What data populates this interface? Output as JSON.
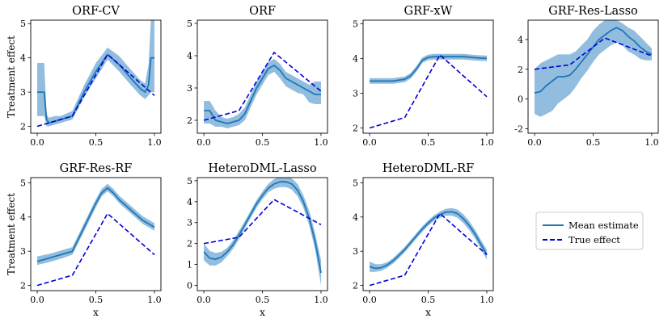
{
  "figure": {
    "legend": {
      "mean_label": "Mean estimate",
      "true_label": "True effect",
      "placement": "right-of-bottom-row"
    },
    "colors": {
      "mean": "#1f77b4",
      "band": "#7fb2d9",
      "true": "#0000dd"
    },
    "true_effect": {
      "x": [
        0,
        0.3,
        0.6,
        1.0
      ],
      "y": [
        2.0,
        2.3,
        4.1,
        2.9
      ]
    }
  },
  "chart_data": [
    {
      "type": "line",
      "title": "ORF-CV",
      "xlabel": "",
      "ylabel": "Treatment effect",
      "xlim": [
        0,
        1
      ],
      "ylim": [
        1.8,
        5.1
      ],
      "xticks": [
        "0.0",
        "0.5",
        "1.0"
      ],
      "xtick_values": [
        0,
        0.5,
        1
      ],
      "yticks": [
        "2",
        "3",
        "4",
        "5"
      ],
      "ytick_values": [
        2,
        3,
        4,
        5
      ],
      "series": [
        {
          "name": "Mean estimate",
          "x": [
            0,
            0.02,
            0.06,
            0.08,
            0.1,
            0.15,
            0.2,
            0.3,
            0.4,
            0.5,
            0.6,
            0.7,
            0.8,
            0.88,
            0.92,
            0.95,
            0.97,
            1.0
          ],
          "y": [
            3.0,
            3.0,
            3.0,
            2.2,
            2.1,
            2.15,
            2.2,
            2.3,
            3.0,
            3.6,
            4.1,
            3.8,
            3.4,
            3.1,
            3.0,
            3.2,
            4.0,
            4.0
          ],
          "lower": [
            2.3,
            2.3,
            2.3,
            2.0,
            2.0,
            2.05,
            2.1,
            2.2,
            2.85,
            3.4,
            3.95,
            3.6,
            3.2,
            2.9,
            2.8,
            2.9,
            3.0,
            3.0
          ],
          "upper": [
            3.85,
            3.85,
            3.85,
            2.35,
            2.25,
            2.3,
            2.3,
            2.45,
            3.2,
            3.85,
            4.3,
            4.05,
            3.65,
            3.35,
            3.25,
            3.8,
            5.1,
            5.1
          ]
        },
        {
          "name": "True effect",
          "x": [
            0,
            0.3,
            0.6,
            1.0
          ],
          "y": [
            2.0,
            2.3,
            4.1,
            2.9
          ]
        }
      ]
    },
    {
      "type": "line",
      "title": "ORF",
      "xlabel": "",
      "ylabel": "",
      "xlim": [
        0,
        1
      ],
      "ylim": [
        1.6,
        5.1
      ],
      "xticks": [
        "0.0",
        "0.5",
        "1.0"
      ],
      "xtick_values": [
        0,
        0.5,
        1
      ],
      "yticks": [
        "2",
        "3",
        "4",
        "5"
      ],
      "ytick_values": [
        2,
        3,
        4,
        5
      ],
      "series": [
        {
          "name": "Mean estimate",
          "x": [
            0,
            0.05,
            0.1,
            0.15,
            0.2,
            0.25,
            0.3,
            0.35,
            0.4,
            0.45,
            0.5,
            0.55,
            0.6,
            0.65,
            0.7,
            0.75,
            0.8,
            0.85,
            0.9,
            0.95,
            1.0
          ],
          "y": [
            2.3,
            2.3,
            2.0,
            1.95,
            1.9,
            1.95,
            2.0,
            2.2,
            2.6,
            3.0,
            3.3,
            3.6,
            3.7,
            3.55,
            3.3,
            3.2,
            3.1,
            3.0,
            2.9,
            2.8,
            2.8
          ],
          "lower": [
            1.9,
            1.9,
            1.8,
            1.8,
            1.75,
            1.8,
            1.85,
            2.0,
            2.4,
            2.8,
            3.1,
            3.4,
            3.5,
            3.3,
            3.05,
            2.95,
            2.85,
            2.8,
            2.55,
            2.5,
            2.5
          ],
          "upper": [
            2.6,
            2.6,
            2.3,
            2.1,
            2.05,
            2.1,
            2.2,
            2.4,
            2.8,
            3.2,
            3.5,
            3.8,
            3.9,
            3.75,
            3.5,
            3.4,
            3.3,
            3.2,
            3.1,
            3.2,
            3.2
          ]
        },
        {
          "name": "True effect",
          "x": [
            0,
            0.3,
            0.6,
            1.0
          ],
          "y": [
            2.0,
            2.3,
            4.1,
            2.9
          ]
        }
      ]
    },
    {
      "type": "line",
      "title": "GRF-xW",
      "xlabel": "",
      "ylabel": "",
      "xlim": [
        0,
        1
      ],
      "ylim": [
        1.85,
        5.1
      ],
      "xticks": [
        "0.0",
        "0.5",
        "1.0"
      ],
      "xtick_values": [
        0,
        0.5,
        1
      ],
      "yticks": [
        "2",
        "3",
        "4",
        "5"
      ],
      "ytick_values": [
        2,
        3,
        4,
        5
      ],
      "series": [
        {
          "name": "Mean estimate",
          "x": [
            0,
            0.1,
            0.2,
            0.3,
            0.35,
            0.4,
            0.45,
            0.5,
            0.55,
            0.6,
            0.7,
            0.8,
            0.9,
            1.0
          ],
          "y": [
            3.35,
            3.35,
            3.35,
            3.4,
            3.5,
            3.7,
            3.95,
            4.03,
            4.05,
            4.05,
            4.05,
            4.05,
            4.02,
            4.0
          ],
          "lower": [
            3.27,
            3.27,
            3.27,
            3.32,
            3.42,
            3.62,
            3.87,
            3.95,
            3.97,
            3.97,
            3.97,
            3.97,
            3.94,
            3.92
          ],
          "upper": [
            3.43,
            3.43,
            3.43,
            3.48,
            3.58,
            3.78,
            4.03,
            4.11,
            4.13,
            4.13,
            4.13,
            4.13,
            4.1,
            4.08
          ]
        },
        {
          "name": "True effect",
          "x": [
            0,
            0.3,
            0.6,
            1.0
          ],
          "y": [
            2.0,
            2.3,
            4.1,
            2.9
          ]
        }
      ]
    },
    {
      "type": "line",
      "title": "GRF-Res-Lasso",
      "xlabel": "",
      "ylabel": "",
      "xlim": [
        0,
        1
      ],
      "ylim": [
        -2.3,
        5.3
      ],
      "xticks": [
        "0.0",
        "0.5",
        "1.0"
      ],
      "xtick_values": [
        0,
        0.5,
        1
      ],
      "yticks": [
        "-2",
        "0",
        "2",
        "4"
      ],
      "ytick_values": [
        -2,
        0,
        2,
        4
      ],
      "series": [
        {
          "name": "Mean estimate",
          "x": [
            0,
            0.05,
            0.1,
            0.15,
            0.2,
            0.25,
            0.3,
            0.35,
            0.4,
            0.45,
            0.5,
            0.55,
            0.6,
            0.65,
            0.7,
            0.75,
            0.8,
            0.85,
            0.9,
            0.95,
            1.0
          ],
          "y": [
            0.4,
            0.5,
            0.9,
            1.2,
            1.5,
            1.5,
            1.6,
            2.0,
            2.5,
            3.0,
            3.5,
            4.0,
            4.3,
            4.6,
            4.8,
            4.6,
            4.2,
            3.9,
            3.5,
            3.2,
            3.0
          ],
          "lower": [
            -1.0,
            -1.2,
            -1.0,
            -0.8,
            -0.3,
            0.0,
            0.3,
            0.8,
            1.4,
            1.9,
            2.5,
            3.0,
            3.3,
            3.6,
            3.8,
            3.6,
            3.2,
            3.0,
            2.7,
            2.6,
            2.6
          ],
          "upper": [
            2.0,
            2.4,
            2.6,
            2.8,
            3.0,
            3.0,
            3.0,
            3.2,
            3.6,
            4.0,
            4.6,
            5.0,
            5.3,
            5.3,
            5.3,
            5.1,
            4.8,
            4.6,
            4.2,
            3.8,
            3.4
          ]
        },
        {
          "name": "True effect",
          "x": [
            0,
            0.3,
            0.6,
            1.0
          ],
          "y": [
            2.0,
            2.3,
            4.1,
            2.9
          ]
        }
      ]
    },
    {
      "type": "line",
      "title": "GRF-Res-RF",
      "xlabel": "x",
      "ylabel": "Treatment effect",
      "xlim": [
        0,
        1
      ],
      "ylim": [
        1.85,
        5.15
      ],
      "xticks": [
        "0.0",
        "0.5",
        "1.0"
      ],
      "xtick_values": [
        0,
        0.5,
        1
      ],
      "yticks": [
        "2",
        "3",
        "4",
        "5"
      ],
      "ytick_values": [
        2,
        3,
        4,
        5
      ],
      "series": [
        {
          "name": "Mean estimate",
          "x": [
            0,
            0.1,
            0.2,
            0.3,
            0.4,
            0.5,
            0.55,
            0.6,
            0.65,
            0.7,
            0.8,
            0.9,
            1.0
          ],
          "y": [
            2.7,
            2.8,
            2.9,
            3.0,
            3.7,
            4.4,
            4.7,
            4.85,
            4.7,
            4.5,
            4.2,
            3.9,
            3.7
          ],
          "lower": [
            2.6,
            2.68,
            2.78,
            2.9,
            3.58,
            4.28,
            4.6,
            4.75,
            4.6,
            4.4,
            4.1,
            3.8,
            3.6
          ],
          "upper": [
            2.85,
            2.92,
            3.02,
            3.12,
            3.82,
            4.52,
            4.82,
            4.97,
            4.82,
            4.62,
            4.32,
            4.02,
            3.82
          ]
        },
        {
          "name": "True effect",
          "x": [
            0,
            0.3,
            0.6,
            1.0
          ],
          "y": [
            2.0,
            2.3,
            4.1,
            2.9
          ]
        }
      ]
    },
    {
      "type": "line",
      "title": "HeteroDML-Lasso",
      "xlabel": "x",
      "ylabel": "",
      "xlim": [
        0,
        1
      ],
      "ylim": [
        -0.25,
        5.15
      ],
      "xticks": [
        "0.0",
        "0.5",
        "1.0"
      ],
      "xtick_values": [
        0,
        0.5,
        1
      ],
      "yticks": [
        "0",
        "1",
        "2",
        "3",
        "4",
        "5"
      ],
      "ytick_values": [
        0,
        1,
        2,
        3,
        4,
        5
      ],
      "series": [
        {
          "name": "Mean estimate",
          "x": [
            0,
            0.05,
            0.1,
            0.15,
            0.2,
            0.25,
            0.3,
            0.35,
            0.4,
            0.45,
            0.5,
            0.55,
            0.6,
            0.65,
            0.7,
            0.75,
            0.8,
            0.85,
            0.9,
            0.95,
            1.0
          ],
          "y": [
            1.6,
            1.3,
            1.25,
            1.35,
            1.6,
            1.95,
            2.4,
            2.9,
            3.4,
            3.9,
            4.3,
            4.65,
            4.85,
            4.95,
            4.95,
            4.85,
            4.55,
            4.0,
            3.2,
            2.1,
            0.6
          ],
          "lower": [
            1.2,
            0.95,
            0.95,
            1.1,
            1.4,
            1.75,
            2.2,
            2.72,
            3.22,
            3.72,
            4.12,
            4.45,
            4.62,
            4.7,
            4.7,
            4.58,
            4.26,
            3.7,
            2.85,
            1.7,
            0.0
          ],
          "upper": [
            2.0,
            1.65,
            1.55,
            1.6,
            1.8,
            2.15,
            2.6,
            3.08,
            3.58,
            4.08,
            4.48,
            4.85,
            5.08,
            5.2,
            5.2,
            5.12,
            4.84,
            4.3,
            3.55,
            2.5,
            1.2
          ]
        },
        {
          "name": "True effect",
          "x": [
            0,
            0.3,
            0.6,
            1.0
          ],
          "y": [
            2.0,
            2.3,
            4.1,
            2.9
          ]
        }
      ]
    },
    {
      "type": "line",
      "title": "HeteroDML-RF",
      "xlabel": "x",
      "ylabel": "",
      "xlim": [
        0,
        1
      ],
      "ylim": [
        1.85,
        5.15
      ],
      "xticks": [
        "0.0",
        "0.5",
        "1.0"
      ],
      "xtick_values": [
        0,
        0.5,
        1
      ],
      "yticks": [
        "2",
        "3",
        "4",
        "5"
      ],
      "ytick_values": [
        2,
        3,
        4,
        5
      ],
      "series": [
        {
          "name": "Mean estimate",
          "x": [
            0,
            0.05,
            0.1,
            0.15,
            0.2,
            0.25,
            0.3,
            0.35,
            0.4,
            0.45,
            0.5,
            0.55,
            0.6,
            0.65,
            0.7,
            0.75,
            0.8,
            0.85,
            0.9,
            0.95,
            1.0
          ],
          "y": [
            2.55,
            2.5,
            2.52,
            2.6,
            2.72,
            2.88,
            3.05,
            3.25,
            3.45,
            3.65,
            3.82,
            3.97,
            4.07,
            4.14,
            4.15,
            4.1,
            3.95,
            3.75,
            3.5,
            3.2,
            2.9
          ],
          "lower": [
            2.4,
            2.4,
            2.43,
            2.52,
            2.64,
            2.8,
            2.97,
            3.17,
            3.37,
            3.57,
            3.74,
            3.89,
            3.98,
            4.04,
            4.04,
            3.98,
            3.82,
            3.62,
            3.37,
            3.07,
            2.75
          ],
          "upper": [
            2.7,
            2.62,
            2.62,
            2.68,
            2.8,
            2.96,
            3.13,
            3.33,
            3.53,
            3.73,
            3.9,
            4.05,
            4.16,
            4.24,
            4.26,
            4.22,
            4.08,
            3.88,
            3.63,
            3.33,
            3.05
          ]
        },
        {
          "name": "True effect",
          "x": [
            0,
            0.3,
            0.6,
            1.0
          ],
          "y": [
            2.0,
            2.3,
            4.1,
            2.9
          ]
        }
      ]
    }
  ]
}
